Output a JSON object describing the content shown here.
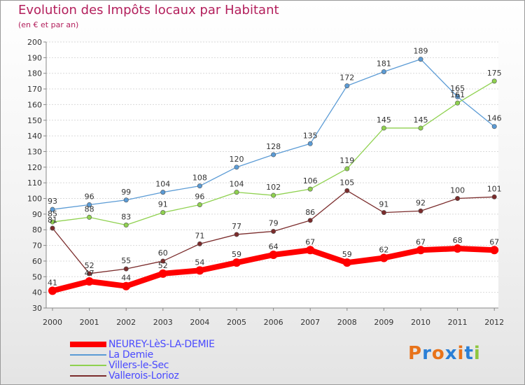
{
  "header": {
    "title": "Evolution des Impôts locaux par Habitant",
    "subtitle": "(en € et par an)"
  },
  "logo": {
    "text": "Proxiti",
    "colors": [
      "#e8731a",
      "#2a7fd6",
      "#e8731a",
      "#2a7fd6",
      "#e8731a",
      "#2a7fd6",
      "#8ec63f"
    ]
  },
  "chart_data": {
    "type": "line",
    "title": "Evolution des Impôts locaux par Habitant",
    "subtitle": "(en € et par an)",
    "xlabel": "",
    "ylabel": "",
    "ylim": [
      30,
      200
    ],
    "y_ticks": [
      30,
      40,
      50,
      60,
      70,
      80,
      90,
      100,
      110,
      120,
      130,
      140,
      150,
      160,
      170,
      180,
      190,
      200
    ],
    "x": [
      "2000",
      "2001",
      "2002",
      "2003",
      "2004",
      "2005",
      "2006",
      "2007",
      "2008",
      "2009",
      "2010",
      "2011",
      "2012"
    ],
    "grid": "horizontal",
    "legend_position": "bottom-left",
    "series": [
      {
        "name": "NEUREY-LèS-LA-DEMIE",
        "color": "#ff0000",
        "values": [
          41,
          47,
          44,
          52,
          54,
          59,
          64,
          67,
          59,
          62,
          67,
          68,
          67
        ],
        "labels": [
          "41",
          "47",
          "44",
          "52",
          "54",
          "59",
          "64",
          "67",
          "59",
          "62",
          "67",
          "68",
          "67"
        ]
      },
      {
        "name": "La Demie",
        "color": "#5b9bd5",
        "values": [
          93,
          96,
          99,
          104,
          108,
          120,
          128,
          135,
          172,
          181,
          189,
          165,
          146
        ],
        "labels": [
          "93",
          "96",
          "99",
          "104",
          "108",
          "120",
          "128",
          "135",
          "172",
          "181",
          "189",
          "165",
          "146"
        ]
      },
      {
        "name": "Villers-le-Sec",
        "color": "#8fd14f",
        "values": [
          85,
          88,
          83,
          91,
          96,
          104,
          102,
          106,
          119,
          145,
          145,
          161,
          175
        ],
        "labels": [
          "85",
          "88",
          "83",
          "91",
          "96",
          "104",
          "102",
          "106",
          "119",
          "145",
          "145",
          "161",
          "175"
        ]
      },
      {
        "name": "Vallerois-Lorioz",
        "color": "#7b2c2c",
        "values": [
          81,
          52,
          55,
          60,
          71,
          77,
          79,
          86,
          105,
          91,
          92,
          100,
          101
        ],
        "labels": [
          "81",
          "52",
          "55",
          "60",
          "71",
          "77",
          "79",
          "86",
          "105",
          "91",
          "92",
          "100",
          "101"
        ]
      }
    ]
  }
}
